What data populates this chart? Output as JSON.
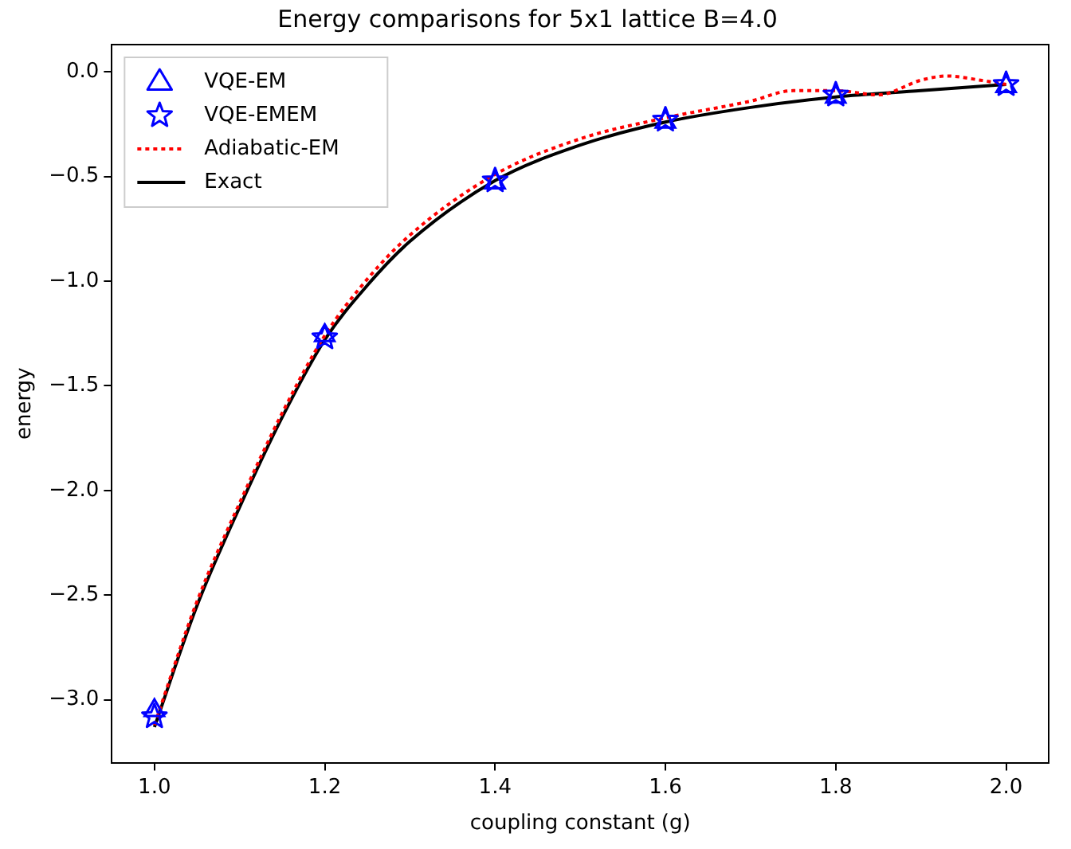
{
  "chart_data": {
    "type": "scatter",
    "title": "Energy comparisons for 5x1 lattice B=4.0",
    "xlabel": "coupling constant (g)",
    "ylabel": "energy",
    "xlim": [
      0.95,
      2.05
    ],
    "ylim": [
      -3.3,
      0.13
    ],
    "xticks": [
      {
        "value": 1,
        "label": "1.0"
      },
      {
        "value": 1.2,
        "label": "1.2"
      },
      {
        "value": 1.4,
        "label": "1.4"
      },
      {
        "value": 1.6,
        "label": "1.6"
      },
      {
        "value": 1.8,
        "label": "1.8"
      },
      {
        "value": 2,
        "label": "2.0"
      }
    ],
    "yticks": [
      {
        "value": -3,
        "label": "−3.0"
      },
      {
        "value": -2.5,
        "label": "−2.5"
      },
      {
        "value": -2,
        "label": "−2.0"
      },
      {
        "value": -1.5,
        "label": "−1.5"
      },
      {
        "value": -1,
        "label": "−1.0"
      },
      {
        "value": -0.5,
        "label": "−0.5"
      },
      {
        "value": 0,
        "label": "0.0"
      }
    ],
    "grid": false,
    "legend": "top left",
    "series": [
      {
        "name": "VQE-EM",
        "marker": "triangle",
        "color": "#0000ff",
        "x": [
          1,
          1.2,
          1.4,
          1.6,
          1.8,
          2
        ],
        "values": [
          -3.05,
          -1.26,
          -0.53,
          -0.24,
          -0.12,
          -0.07
        ]
      },
      {
        "name": "VQE-EMEM",
        "marker": "star",
        "color": "#0000ff",
        "x": [
          1,
          1.2,
          1.4,
          1.6,
          1.8,
          2
        ],
        "values": [
          -3.08,
          -1.27,
          -0.52,
          -0.23,
          -0.11,
          -0.06
        ]
      },
      {
        "name": "Adiabatic-EM",
        "type": "line",
        "marker": "none",
        "line_style": "dotted",
        "color": "#ff0000",
        "x": [
          1,
          1.05,
          1.1,
          1.15,
          1.2,
          1.25,
          1.3,
          1.4,
          1.5,
          1.6,
          1.7,
          1.75,
          1.8,
          1.85,
          1.9,
          1.93,
          1.97,
          2
        ],
        "values": [
          -3.12,
          -2.53,
          -2.06,
          -1.63,
          -1.26,
          -0.99,
          -0.78,
          -0.49,
          -0.32,
          -0.22,
          -0.14,
          -0.09,
          -0.09,
          -0.11,
          -0.04,
          -0.02,
          -0.04,
          -0.06
        ]
      },
      {
        "name": "Exact",
        "type": "line",
        "marker": "none",
        "line_style": "solid",
        "color": "#000000",
        "x": [
          1,
          1.05,
          1.1,
          1.15,
          1.2,
          1.25,
          1.3,
          1.4,
          1.5,
          1.6,
          1.7,
          1.8,
          1.9,
          2
        ],
        "values": [
          -3.13,
          -2.55,
          -2.08,
          -1.65,
          -1.28,
          -1.02,
          -0.81,
          -0.52,
          -0.35,
          -0.24,
          -0.17,
          -0.12,
          -0.09,
          -0.06
        ]
      }
    ]
  }
}
